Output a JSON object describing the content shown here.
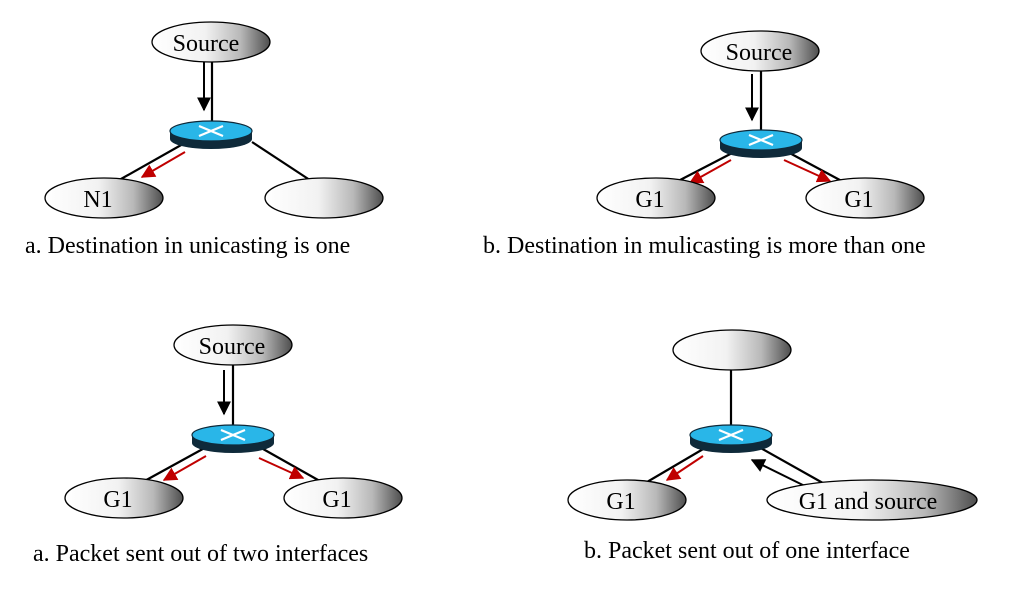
{
  "panels": [
    {
      "id": "unicast",
      "caption": "a. Destination in unicasting is one",
      "top_node": "Source",
      "left_node": "N1",
      "right_node": ""
    },
    {
      "id": "multicast",
      "caption": "b. Destination in mulicasting is more than one",
      "top_node": "Source",
      "left_node": "G1",
      "right_node": "G1"
    },
    {
      "id": "two-interfaces",
      "caption": "a. Packet sent out of two interfaces",
      "top_node": "Source",
      "left_node": "G1",
      "right_node": "G1"
    },
    {
      "id": "one-interface",
      "caption": "b. Packet sent out of one interface",
      "top_node": "",
      "left_node": "G1",
      "right_node": "G1 and source"
    }
  ],
  "colors": {
    "router_top": "#29b6e8",
    "router_side": "#0f2a3a",
    "arrow_red": "#c00000",
    "node_gradient_light": "#ffffff",
    "node_gradient_dark": "#5a5a5a"
  }
}
